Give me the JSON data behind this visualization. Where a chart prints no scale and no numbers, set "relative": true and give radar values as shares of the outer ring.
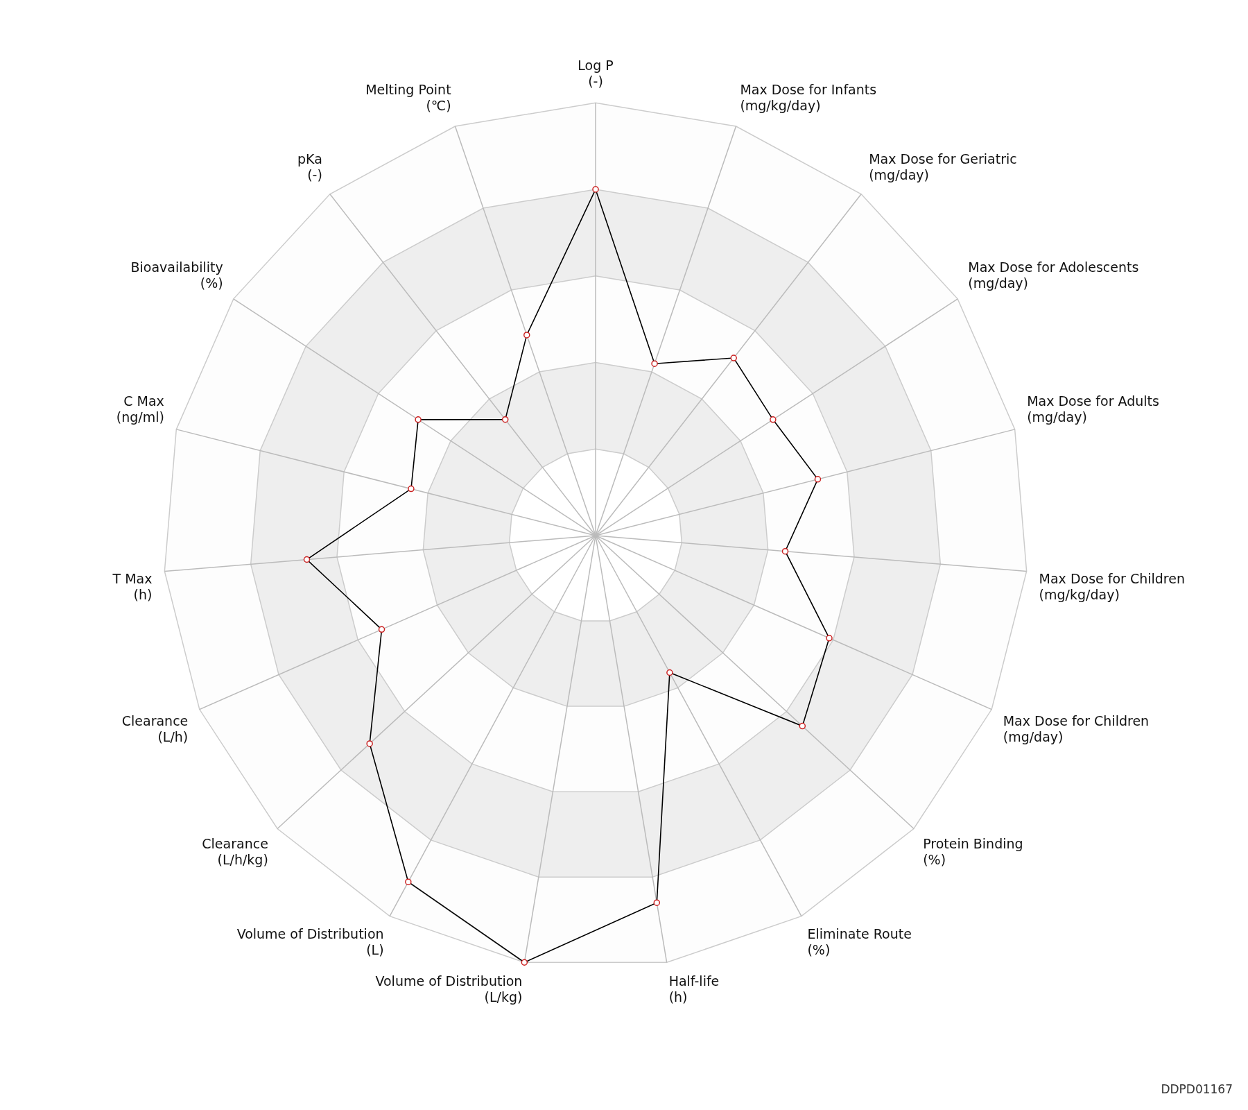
{
  "chart_data": {
    "type": "radar",
    "relative": true,
    "categories": [
      "Log P\n(-)",
      "Max Dose for Infants\n(mg/kg/day)",
      "Max Dose for Geriatric\n(mg/day)",
      "Max Dose for Adolescents\n(mg/day)",
      "Max Dose for Adults\n(mg/day)",
      "Max Dose for Children\n(mg/kg/day)",
      "Max Dose for Children\n(mg/day)",
      "Protein Binding\n(%)",
      "Eliminate Route\n(%)",
      "Half-life\n(h)",
      "Volume of Distribution\n(L/kg)",
      "Volume of Distribution\n(L)",
      "Clearance\n(L/h/kg)",
      "Clearance\n(L/h)",
      "T Max\n(h)",
      "C Max\n(ng/ml)",
      "Bioavailability\n(%)",
      "pKa\n(-)",
      "Melting Point\n(℃)"
    ],
    "series": [
      {
        "color": "#000000",
        "values": [
          0.8,
          0.42,
          0.52,
          0.49,
          0.53,
          0.44,
          0.59,
          0.65,
          0.36,
          0.86,
          1,
          0.91,
          0.71,
          0.54,
          0.67,
          0.44,
          0.49,
          0.34,
          0.49
        ]
      }
    ],
    "marker": "circle",
    "legend": false,
    "grid": true,
    "annotations": [
      "DDPD01167"
    ]
  }
}
